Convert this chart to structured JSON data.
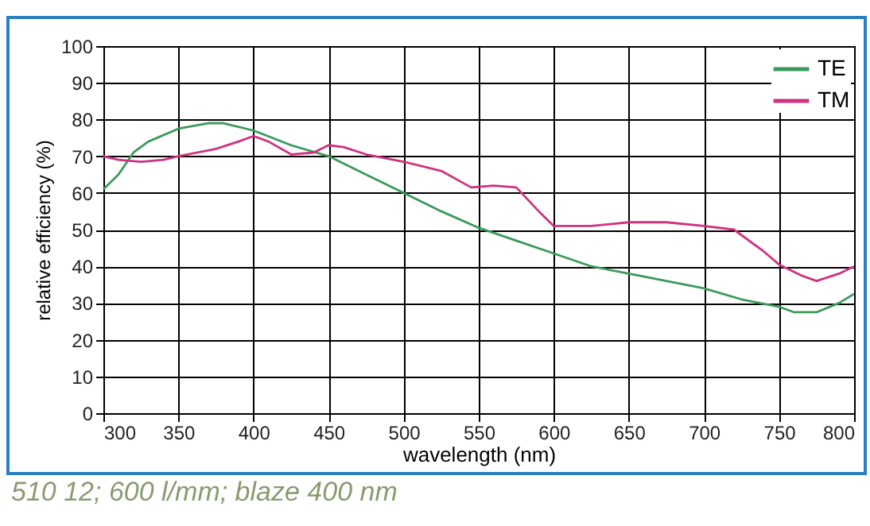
{
  "chart_data": {
    "type": "line",
    "xlabel": "wavelength (nm)",
    "ylabel": "relative efficiency (%)",
    "annotations": [
      "510 12; 600 l/mm; blaze 400 nm"
    ],
    "xlim": [
      300,
      800
    ],
    "xticks": [
      300,
      350,
      400,
      450,
      500,
      550,
      600,
      650,
      700,
      750,
      800
    ],
    "ylim": [
      0,
      100
    ],
    "yticks": [
      0,
      10,
      20,
      30,
      40,
      50,
      60,
      70,
      80,
      90,
      100
    ],
    "grid": true,
    "legend": "top right",
    "marker": "none",
    "line_style": "solid",
    "series": [
      {
        "name": "TE",
        "color": "#3a9a5a",
        "x": [
          300,
          310,
          320,
          330,
          350,
          370,
          380,
          400,
          425,
          450,
          475,
          500,
          525,
          550,
          575,
          600,
          625,
          650,
          675,
          700,
          725,
          750,
          760,
          775,
          790,
          800
        ],
        "values": [
          61,
          65,
          71,
          74,
          77.5,
          79,
          79,
          77,
          73,
          70,
          65,
          60,
          55,
          50.5,
          47,
          43.5,
          40,
          38,
          36,
          34,
          31,
          29,
          27.5,
          27.5,
          30,
          32.5
        ]
      },
      {
        "name": "TM",
        "color": "#d0317f",
        "x": [
          300,
          310,
          325,
          340,
          350,
          375,
          390,
          400,
          410,
          425,
          440,
          450,
          460,
          475,
          500,
          525,
          545,
          560,
          575,
          590,
          600,
          625,
          650,
          675,
          700,
          720,
          740,
          750,
          765,
          775,
          790,
          800
        ],
        "values": [
          70,
          69,
          68.5,
          69,
          70,
          72,
          74,
          75.5,
          74,
          70.5,
          71,
          73,
          72.5,
          70.5,
          68.5,
          66,
          61.5,
          62,
          61.5,
          55,
          51,
          51,
          52,
          52,
          51,
          50,
          44,
          40.5,
          37.5,
          36,
          38,
          40
        ]
      }
    ]
  }
}
